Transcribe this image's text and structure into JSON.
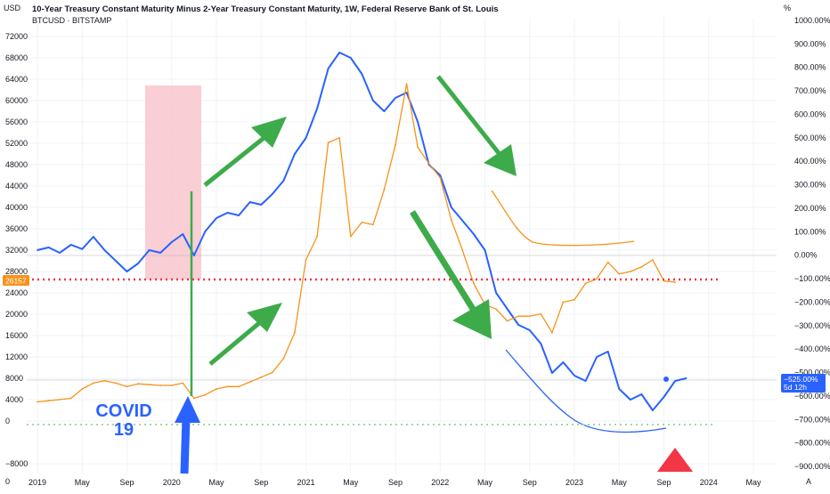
{
  "header": {
    "title": "10-Year Treasury Constant Maturity Minus 2-Year Treasury Constant Maturity, 1W, Federal Reserve Bank of St. Louis",
    "subtitle": "BTCUSD · BITSTAMP",
    "left_unit": "USD",
    "right_unit": "%"
  },
  "annotations": {
    "covid_line1": "COVID",
    "covid_line2": "19"
  },
  "badges": {
    "price": "26157",
    "percent_value": "−525.00%",
    "percent_time": "5d 12h"
  },
  "corner": {
    "left": "0",
    "right": "A"
  },
  "colors": {
    "btc": "#2962ff",
    "spread": "#f7931a",
    "arrow_green": "#3dab4a",
    "arrow_blue": "#2962ff",
    "red_dots": "#f23645",
    "green_dots": "#a5d6a7",
    "covid_zone": "#f8c5cc",
    "triangle": "#f23645"
  },
  "chart_data": {
    "type": "line",
    "x": [
      "2019-01",
      "2019-05",
      "2019-09",
      "2020-01",
      "2020-05",
      "2020-09",
      "2021-01",
      "2021-05",
      "2021-09",
      "2022-01",
      "2022-05",
      "2022-09",
      "2023-01",
      "2023-05",
      "2023-09",
      "2024-01",
      "2024-05"
    ],
    "x_tick_labels": [
      "2019",
      "May",
      "Sep",
      "2020",
      "May",
      "Sep",
      "2021",
      "May",
      "Sep",
      "2022",
      "May",
      "Sep",
      "2023",
      "May",
      "Sep",
      "2024",
      "May"
    ],
    "left_axis": {
      "ticks": [
        72000,
        68000,
        64000,
        60000,
        56000,
        52000,
        48000,
        44000,
        40000,
        36000,
        32000,
        28000,
        24000,
        20000,
        16000,
        12000,
        8000,
        4000,
        0,
        -8000
      ],
      "tick_labels": [
        "72000",
        "68000",
        "64000",
        "60000",
        "56000",
        "52000",
        "48000",
        "44000",
        "40000",
        "36000",
        "32000",
        "28000",
        "24000",
        "20000",
        "16000",
        "12000",
        "8000",
        "4000",
        "0",
        "−8000"
      ],
      "ylim": [
        -8000,
        72000
      ]
    },
    "right_axis": {
      "ticks": [
        1000,
        900,
        800,
        700,
        600,
        500,
        400,
        300,
        200,
        100,
        0,
        -100,
        -200,
        -300,
        -400,
        -500,
        -600,
        -700,
        -800,
        -900
      ],
      "tick_labels": [
        "1000.00%",
        "900.00%",
        "800.00%",
        "700.00%",
        "600.00%",
        "500.00%",
        "400.00%",
        "300.00%",
        "200.00%",
        "100.00%",
        "0.00%",
        "−100.00%",
        "−200.00%",
        "−300.00%",
        "−400.00%",
        "−500.00%",
        "−600.00%",
        "−700.00%",
        "−800.00%",
        "−900.00%"
      ],
      "ylim": [
        -900,
        1000
      ]
    },
    "series": [
      {
        "name": "BTCUSD",
        "axis": "left",
        "color": "#2962ff",
        "points": [
          [
            "2019-01",
            32000
          ],
          [
            "2019-02",
            32500
          ],
          [
            "2019-03",
            31500
          ],
          [
            "2019-04",
            33000
          ],
          [
            "2019-05",
            32200
          ],
          [
            "2019-06",
            34500
          ],
          [
            "2019-07",
            32000
          ],
          [
            "2019-08",
            30000
          ],
          [
            "2019-09",
            28000
          ],
          [
            "2019-10",
            29500
          ],
          [
            "2019-11",
            32000
          ],
          [
            "2019-12",
            31500
          ],
          [
            "2020-01",
            33500
          ],
          [
            "2020-02",
            35000
          ],
          [
            "2020-03",
            31000
          ],
          [
            "2020-04",
            35500
          ],
          [
            "2020-05",
            38000
          ],
          [
            "2020-06",
            39000
          ],
          [
            "2020-07",
            38500
          ],
          [
            "2020-08",
            41000
          ],
          [
            "2020-09",
            40500
          ],
          [
            "2020-10",
            42500
          ],
          [
            "2020-11",
            45000
          ],
          [
            "2020-12",
            50000
          ],
          [
            "2021-01",
            53000
          ],
          [
            "2021-02",
            58500
          ],
          [
            "2021-03",
            66000
          ],
          [
            "2021-04",
            69000
          ],
          [
            "2021-05",
            68000
          ],
          [
            "2021-06",
            65000
          ],
          [
            "2021-07",
            60000
          ],
          [
            "2021-08",
            58000
          ],
          [
            "2021-09",
            60500
          ],
          [
            "2021-10",
            61500
          ],
          [
            "2021-11",
            56000
          ],
          [
            "2021-12",
            48000
          ],
          [
            "2022-01",
            46000
          ],
          [
            "2022-02",
            40000
          ],
          [
            "2022-03",
            37500
          ],
          [
            "2022-04",
            35000
          ],
          [
            "2022-05",
            32000
          ],
          [
            "2022-06",
            24000
          ],
          [
            "2022-07",
            21000
          ],
          [
            "2022-08",
            18000
          ],
          [
            "2022-09",
            17000
          ],
          [
            "2022-10",
            14500
          ],
          [
            "2022-11",
            9000
          ],
          [
            "2022-12",
            11000
          ],
          [
            "2023-01",
            8500
          ],
          [
            "2023-02",
            7500
          ],
          [
            "2023-03",
            12000
          ],
          [
            "2023-04",
            13000
          ],
          [
            "2023-05",
            6000
          ],
          [
            "2023-06",
            4000
          ],
          [
            "2023-07",
            5000
          ],
          [
            "2023-08",
            2000
          ],
          [
            "2023-09",
            4500
          ],
          [
            "2023-10",
            7500
          ],
          [
            "2023-11",
            8000
          ]
        ]
      },
      {
        "name": "10Y-2Y spread",
        "axis": "right",
        "color": "#f7931a",
        "points": [
          [
            "2019-01",
            -625
          ],
          [
            "2019-02",
            -620
          ],
          [
            "2019-03",
            -615
          ],
          [
            "2019-04",
            -610
          ],
          [
            "2019-05",
            -570
          ],
          [
            "2019-06",
            -545
          ],
          [
            "2019-07",
            -535
          ],
          [
            "2019-08",
            -545
          ],
          [
            "2019-09",
            -560
          ],
          [
            "2019-10",
            -548
          ],
          [
            "2019-11",
            -552
          ],
          [
            "2019-12",
            -555
          ],
          [
            "2020-01",
            -555
          ],
          [
            "2020-02",
            -545
          ],
          [
            "2020-03",
            -610
          ],
          [
            "2020-04",
            -595
          ],
          [
            "2020-05",
            -570
          ],
          [
            "2020-06",
            -560
          ],
          [
            "2020-07",
            -560
          ],
          [
            "2020-08",
            -540
          ],
          [
            "2020-09",
            -520
          ],
          [
            "2020-10",
            -500
          ],
          [
            "2020-11",
            -440
          ],
          [
            "2020-12",
            -330
          ],
          [
            "2021-01",
            -20
          ],
          [
            "2021-02",
            80
          ],
          [
            "2021-03",
            480
          ],
          [
            "2021-04",
            500
          ],
          [
            "2021-05",
            80
          ],
          [
            "2021-06",
            140
          ],
          [
            "2021-07",
            130
          ],
          [
            "2021-08",
            280
          ],
          [
            "2021-09",
            470
          ],
          [
            "2021-10",
            730
          ],
          [
            "2021-11",
            460
          ],
          [
            "2021-12",
            390
          ],
          [
            "2022-01",
            330
          ],
          [
            "2022-02",
            150
          ],
          [
            "2022-03",
            20
          ],
          [
            "2022-04",
            -120
          ],
          [
            "2022-05",
            -210
          ],
          [
            "2022-06",
            -230
          ],
          [
            "2022-07",
            -280
          ],
          [
            "2022-08",
            -260
          ],
          [
            "2022-09",
            -260
          ],
          [
            "2022-10",
            -250
          ],
          [
            "2022-11",
            -330
          ],
          [
            "2022-12",
            -200
          ],
          [
            "2023-01",
            -190
          ],
          [
            "2023-02",
            -120
          ],
          [
            "2023-03",
            -100
          ],
          [
            "2023-04",
            -30
          ],
          [
            "2023-05",
            -80
          ],
          [
            "2023-06",
            -70
          ],
          [
            "2023-07",
            -50
          ],
          [
            "2023-08",
            -20
          ],
          [
            "2023-09",
            -110
          ],
          [
            "2023-10",
            -115
          ]
        ]
      }
    ],
    "horizontal_levels": [
      {
        "value": 26157,
        "axis": "left",
        "style": "dotted",
        "color": "#f23645"
      },
      {
        "value": -725,
        "axis": "right",
        "style": "dotted",
        "color": "#a5d6a7"
      }
    ],
    "grid": true,
    "legend": "top-left"
  }
}
